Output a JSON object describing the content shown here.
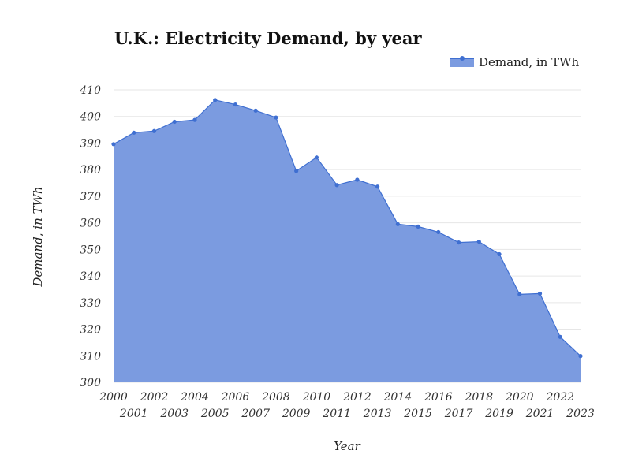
{
  "chart_data": {
    "type": "area",
    "title": "U.K.: Electricity Demand, by year",
    "xlabel": "Year",
    "ylabel": "Demand, in TWh",
    "ylim": [
      300,
      410
    ],
    "yticks": [
      "300",
      "310",
      "320",
      "330",
      "340",
      "350",
      "360",
      "370",
      "380",
      "390",
      "400",
      "410"
    ],
    "grid": true,
    "legend_position": "top-right",
    "x": [
      "2000",
      "2001",
      "2002",
      "2003",
      "2004",
      "2005",
      "2006",
      "2007",
      "2008",
      "2009",
      "2010",
      "2011",
      "2012",
      "2013",
      "2014",
      "2015",
      "2016",
      "2017",
      "2018",
      "2019",
      "2020",
      "2021",
      "2022",
      "2023"
    ],
    "series": [
      {
        "name": "Demand, in TWh",
        "values": [
          389.6,
          393.9,
          394.5,
          398.0,
          398.7,
          406.2,
          404.5,
          402.2,
          399.6,
          379.5,
          384.6,
          374.2,
          376.2,
          373.6,
          359.5,
          358.6,
          356.5,
          352.6,
          352.9,
          348.2,
          333.1,
          333.4,
          317.1,
          309.9
        ]
      }
    ],
    "colors": {
      "fill": "#7b9be0",
      "line": "#3f6fd1",
      "grid": "#e6e6e6"
    }
  }
}
